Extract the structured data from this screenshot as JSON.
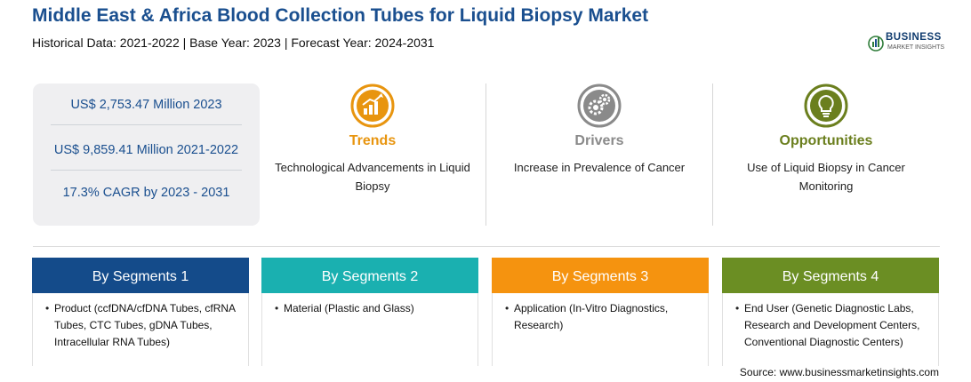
{
  "header": {
    "title": "Middle East & Africa Blood Collection Tubes for Liquid Biopsy Market",
    "subtitle": "Historical Data: 2021-2022 | Base Year: 2023 | Forecast Year: 2024-2031"
  },
  "logo": {
    "name": "BUSINESS",
    "tagline": "MARKET INSIGHTS"
  },
  "stats": [
    "US$ 2,753.47 Million 2023",
    "US$ 9,859.41 Million 2021-2022",
    "17.3% CAGR by 2023 - 2031"
  ],
  "columns": [
    {
      "icon": "chart-growth-icon",
      "heading": "Trends",
      "text": "Technological Advancements in Liquid Biopsy",
      "color": "#e8950f"
    },
    {
      "icon": "gears-icon",
      "heading": "Drivers",
      "text": "Increase in Prevalence of Cancer",
      "color": "#8a8a8a"
    },
    {
      "icon": "lightbulb-icon",
      "heading": "Opportunities",
      "text": "Use of Liquid Biopsy in Cancer Monitoring",
      "color": "#6b7f1e"
    }
  ],
  "segments": [
    {
      "heading": "By Segments 1",
      "bullet": "•",
      "text": "Product (ccfDNA/cfDNA Tubes, cfRNA Tubes, CTC Tubes, gDNA Tubes, Intracellular RNA Tubes)",
      "color": "#144b8a"
    },
    {
      "heading": "By Segments 2",
      "bullet": "•",
      "text": "Material (Plastic and Glass)",
      "color": "#1ab0b0"
    },
    {
      "heading": "By Segments 3",
      "bullet": "•",
      "text": "Application (In-Vitro Diagnostics, Research)",
      "color": "#f5930f"
    },
    {
      "heading": "By Segments 4",
      "bullet": "•",
      "text": "End User (Genetic Diagnostic Labs, Research and Development Centers, Conventional Diagnostic Centers)",
      "color": "#6b8e23"
    }
  ],
  "source": "Source: www.businessmarketinsights.com"
}
